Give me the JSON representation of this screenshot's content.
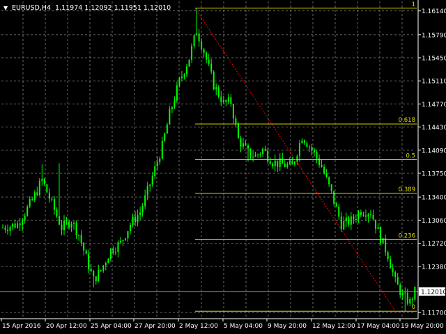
{
  "window": {
    "symbol_label": "EURUSD,H4",
    "ohlc_label": "1.11974 1.12092 1.11951 1.12010",
    "menu_glyph": "▼"
  },
  "colors": {
    "background": "#000000",
    "grid": "#8a8a8a",
    "candle": "#00ff00",
    "fibo": "#dede00",
    "trend": "#ff0000",
    "axis_text": "#ffffff",
    "bid_box_bg": "#ffffff",
    "bid_box_text": "#000000"
  },
  "chart_data": {
    "type": "candlestick",
    "symbol": "EURUSD",
    "timeframe": "H4",
    "y_ticks": [
      "1.16140",
      "1.15790",
      "1.15450",
      "1.15110",
      "1.14770",
      "1.14430",
      "1.14090",
      "1.13750",
      "1.13400",
      "1.13060",
      "1.12720",
      "1.12380",
      "1.11700"
    ],
    "y_tick_values": [
      1.1614,
      1.1579,
      1.1545,
      1.1511,
      1.1477,
      1.1443,
      1.1409,
      1.1375,
      1.134,
      1.1306,
      1.1272,
      1.1238,
      1.117
    ],
    "ylim": [
      1.1163,
      1.1628
    ],
    "x_ticks": [
      "15 Apr 2016",
      "20 Apr 12:00",
      "25 Apr 04:00",
      "27 Apr 20:00",
      "2 May 12:00",
      "5 May 04:00",
      "9 May 20:00",
      "12 May 12:00",
      "17 May 04:00",
      "19 May 20:00"
    ],
    "current_price": "1.12010",
    "current_price_value": 1.1201,
    "close_path": [
      {
        "i": 0,
        "c": 1.1295
      },
      {
        "i": 6,
        "c": 1.13
      },
      {
        "i": 12,
        "c": 1.1335
      },
      {
        "i": 16,
        "c": 1.1365
      },
      {
        "i": 20,
        "c": 1.133
      },
      {
        "i": 24,
        "c": 1.1295
      },
      {
        "i": 28,
        "c": 1.1305
      },
      {
        "i": 31,
        "c": 1.1285
      },
      {
        "i": 34,
        "c": 1.125
      },
      {
        "i": 37,
        "c": 1.1218
      },
      {
        "i": 40,
        "c": 1.1232
      },
      {
        "i": 44,
        "c": 1.1262
      },
      {
        "i": 48,
        "c": 1.1272
      },
      {
        "i": 52,
        "c": 1.13
      },
      {
        "i": 56,
        "c": 1.1318
      },
      {
        "i": 58,
        "c": 1.1338
      },
      {
        "i": 61,
        "c": 1.137
      },
      {
        "i": 65,
        "c": 1.1415
      },
      {
        "i": 68,
        "c": 1.1462
      },
      {
        "i": 72,
        "c": 1.151
      },
      {
        "i": 76,
        "c": 1.1545
      },
      {
        "i": 79,
        "c": 1.1585
      },
      {
        "i": 82,
        "c": 1.1555
      },
      {
        "i": 86,
        "c": 1.1505
      },
      {
        "i": 90,
        "c": 1.1478
      },
      {
        "i": 93,
        "c": 1.148
      },
      {
        "i": 96,
        "c": 1.1425
      },
      {
        "i": 100,
        "c": 1.1405
      },
      {
        "i": 103,
        "c": 1.14
      },
      {
        "i": 106,
        "c": 1.141
      },
      {
        "i": 110,
        "c": 1.1392
      },
      {
        "i": 114,
        "c": 1.1388
      },
      {
        "i": 118,
        "c": 1.1385
      },
      {
        "i": 122,
        "c": 1.143
      },
      {
        "i": 126,
        "c": 1.141
      },
      {
        "i": 130,
        "c": 1.1385
      },
      {
        "i": 134,
        "c": 1.1345
      },
      {
        "i": 138,
        "c": 1.13
      },
      {
        "i": 142,
        "c": 1.1305
      },
      {
        "i": 146,
        "c": 1.132
      },
      {
        "i": 150,
        "c": 1.1318
      },
      {
        "i": 154,
        "c": 1.128
      },
      {
        "i": 157,
        "c": 1.1255
      },
      {
        "i": 160,
        "c": 1.1215
      },
      {
        "i": 163,
        "c": 1.1195
      },
      {
        "i": 166,
        "c": 1.1185
      },
      {
        "i": 168,
        "c": 1.1201
      }
    ],
    "bar_count": 169,
    "fibonacci": {
      "anchor_high": 1.1618,
      "anchor_low": 1.1172,
      "levels": [
        {
          "label": "1",
          "value": 1.1618
        },
        {
          "label": "0.618",
          "value": 1.14476
        },
        {
          "label": "0.5",
          "value": 1.1395
        },
        {
          "label": "0.389",
          "value": 1.13455
        },
        {
          "label": "0.236",
          "value": 1.12773
        },
        {
          "label": "0",
          "value": 1.1172
        }
      ]
    },
    "trendline": {
      "from": {
        "i": 79,
        "price": 1.1618
      },
      "to": {
        "i": 160,
        "price": 1.1172
      }
    },
    "grid": true
  }
}
